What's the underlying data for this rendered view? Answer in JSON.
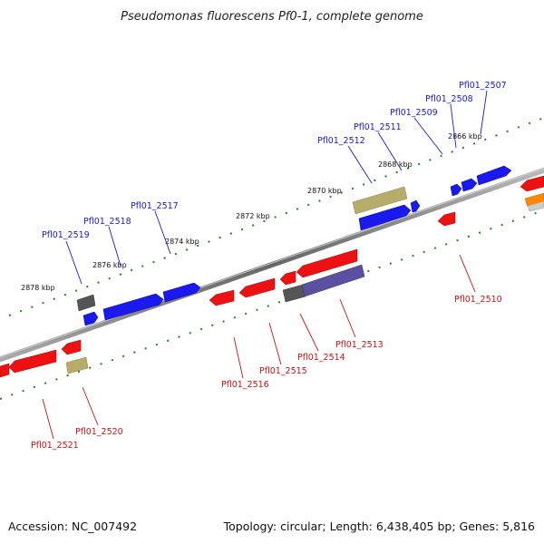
{
  "title": "Pseudomonas fluorescens Pf0-1, complete genome",
  "footer": {
    "accession": "Accession: NC_007492",
    "summary": "Topology: circular; Length: 6,438,405 bp; Genes: 5,816"
  },
  "scale_labels": [
    "2866 kbp",
    "2868 kbp",
    "2870 kbp",
    "2872 kbp",
    "2874 kbp",
    "2876 kbp",
    "2878 kbp"
  ],
  "gene_labels_top": [
    "Pfl01_2507",
    "Pfl01_2508",
    "Pfl01_2509",
    "Pfl01_2511",
    "Pfl01_2512",
    "Pfl01_2517",
    "Pfl01_2518",
    "Pfl01_2519"
  ],
  "gene_labels_bottom": [
    "Pfl01_2510",
    "Pfl01_2513",
    "Pfl01_2514",
    "Pfl01_2515",
    "Pfl01_2516",
    "Pfl01_2520",
    "Pfl01_2521"
  ],
  "colors": {
    "forward_gene": "#1a1aee",
    "reverse_gene": "#ee1111",
    "gray_feature": "#555555",
    "olive_feature": "#b8ac6a",
    "purple_feature": "#5a50a0",
    "orange_feature": "#ff8800",
    "backbone": "#777777",
    "tick": "#1a8a1a"
  }
}
